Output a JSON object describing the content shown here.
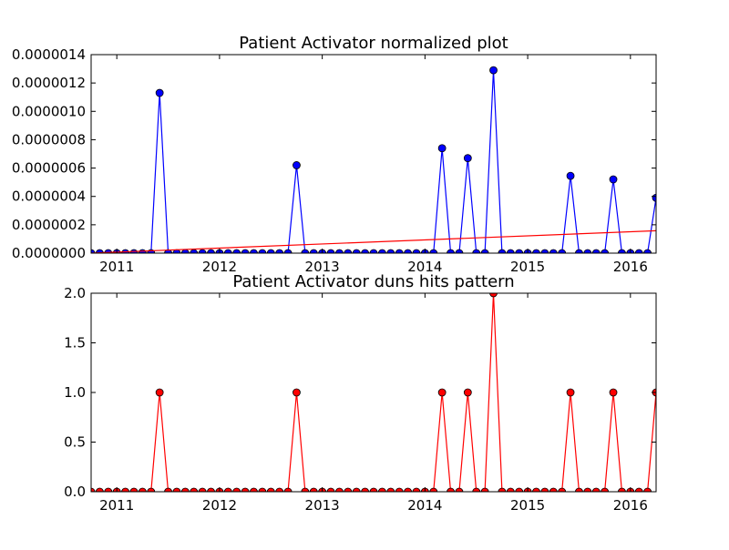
{
  "colors": {
    "top_line": "#0000ff",
    "top_marker_fill": "#0000ff",
    "trend_line": "#ff0000",
    "bottom_line": "#ff0000",
    "bottom_marker_fill": "#ff0000",
    "marker_edge": "#000000",
    "axes": "#000000",
    "background": "#ffffff"
  },
  "chart_data": [
    {
      "type": "line",
      "title": "Patient Activator normalized plot",
      "xlabel": "",
      "ylabel": "",
      "x_ticks": [
        "2011",
        "2012",
        "2013",
        "2014",
        "2015",
        "2016"
      ],
      "y_ticks": [
        "0.0000000",
        "0.0000002",
        "0.0000004",
        "0.0000006",
        "0.0000008",
        "0.0000010",
        "0.0000012",
        "0.0000014"
      ],
      "ylim": [
        0,
        1.4e-06
      ],
      "xlim": [
        "2010-10",
        "2016-04"
      ],
      "grid": false,
      "series": [
        {
          "marker": "circle",
          "x": [
            "2010-10",
            "2010-11",
            "2010-12",
            "2011-01",
            "2011-02",
            "2011-03",
            "2011-04",
            "2011-05",
            "2011-06",
            "2011-07",
            "2011-08",
            "2011-09",
            "2011-10",
            "2011-11",
            "2011-12",
            "2012-01",
            "2012-02",
            "2012-03",
            "2012-04",
            "2012-05",
            "2012-06",
            "2012-07",
            "2012-08",
            "2012-09",
            "2012-10",
            "2012-11",
            "2012-12",
            "2013-01",
            "2013-02",
            "2013-03",
            "2013-04",
            "2013-05",
            "2013-06",
            "2013-07",
            "2013-08",
            "2013-09",
            "2013-10",
            "2013-11",
            "2013-12",
            "2014-01",
            "2014-02",
            "2014-03",
            "2014-04",
            "2014-05",
            "2014-06",
            "2014-07",
            "2014-08",
            "2014-09",
            "2014-10",
            "2014-11",
            "2014-12",
            "2015-01",
            "2015-02",
            "2015-03",
            "2015-04",
            "2015-05",
            "2015-06",
            "2015-07",
            "2015-08",
            "2015-09",
            "2015-10",
            "2015-11",
            "2015-12",
            "2016-01",
            "2016-02",
            "2016-03",
            "2016-04"
          ],
          "values": [
            0,
            0,
            0,
            0,
            0,
            0,
            0,
            0,
            1.13e-06,
            0,
            0,
            0,
            0,
            0,
            0,
            0,
            0,
            0,
            0,
            0,
            0,
            0,
            0,
            0,
            6.2e-07,
            0,
            0,
            0,
            0,
            0,
            0,
            0,
            0,
            0,
            0,
            0,
            0,
            0,
            0,
            0,
            0,
            7.4e-07,
            0,
            0,
            6.7e-07,
            0,
            0,
            1.29e-06,
            0,
            0,
            0,
            0,
            0,
            0,
            0,
            0,
            5.45e-07,
            0,
            0,
            0,
            0,
            5.2e-07,
            0,
            0,
            0,
            0,
            3.9e-07
          ]
        },
        {
          "style": "trend-line",
          "x": [
            "2010-10",
            "2016-04"
          ],
          "values": [
            0,
            1.58e-07
          ]
        }
      ]
    },
    {
      "type": "line",
      "title": "Patient Activator duns hits pattern",
      "xlabel": "",
      "ylabel": "",
      "x_ticks": [
        "2011",
        "2012",
        "2013",
        "2014",
        "2015",
        "2016"
      ],
      "y_ticks": [
        "0.0",
        "0.5",
        "1.0",
        "1.5",
        "2.0"
      ],
      "ylim": [
        0,
        2.0
      ],
      "xlim": [
        "2010-10",
        "2016-04"
      ],
      "grid": false,
      "series": [
        {
          "marker": "circle",
          "x": [
            "2010-10",
            "2010-11",
            "2010-12",
            "2011-01",
            "2011-02",
            "2011-03",
            "2011-04",
            "2011-05",
            "2011-06",
            "2011-07",
            "2011-08",
            "2011-09",
            "2011-10",
            "2011-11",
            "2011-12",
            "2012-01",
            "2012-02",
            "2012-03",
            "2012-04",
            "2012-05",
            "2012-06",
            "2012-07",
            "2012-08",
            "2012-09",
            "2012-10",
            "2012-11",
            "2012-12",
            "2013-01",
            "2013-02",
            "2013-03",
            "2013-04",
            "2013-05",
            "2013-06",
            "2013-07",
            "2013-08",
            "2013-09",
            "2013-10",
            "2013-11",
            "2013-12",
            "2014-01",
            "2014-02",
            "2014-03",
            "2014-04",
            "2014-05",
            "2014-06",
            "2014-07",
            "2014-08",
            "2014-09",
            "2014-10",
            "2014-11",
            "2014-12",
            "2015-01",
            "2015-02",
            "2015-03",
            "2015-04",
            "2015-05",
            "2015-06",
            "2015-07",
            "2015-08",
            "2015-09",
            "2015-10",
            "2015-11",
            "2015-12",
            "2016-01",
            "2016-02",
            "2016-03",
            "2016-04"
          ],
          "values": [
            0,
            0,
            0,
            0,
            0,
            0,
            0,
            0,
            1,
            0,
            0,
            0,
            0,
            0,
            0,
            0,
            0,
            0,
            0,
            0,
            0,
            0,
            0,
            0,
            1,
            0,
            0,
            0,
            0,
            0,
            0,
            0,
            0,
            0,
            0,
            0,
            0,
            0,
            0,
            0,
            0,
            1,
            0,
            0,
            1,
            0,
            0,
            2,
            0,
            0,
            0,
            0,
            0,
            0,
            0,
            0,
            1,
            0,
            0,
            0,
            0,
            1,
            0,
            0,
            0,
            0,
            1
          ]
        }
      ]
    }
  ]
}
